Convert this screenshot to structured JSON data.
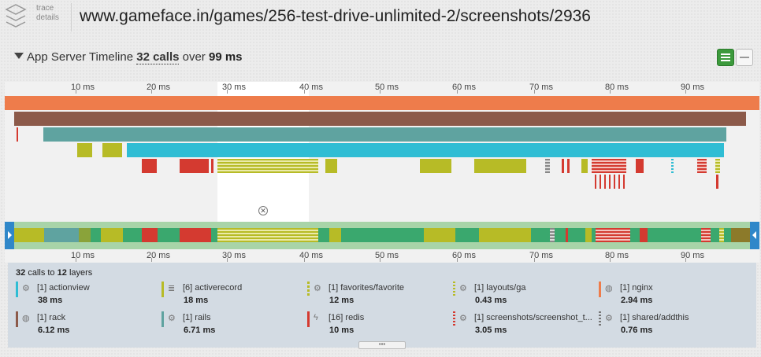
{
  "header": {
    "logo_line1": "trace",
    "logo_line2": "details",
    "url": "www.gameface.in/games/256-test-drive-unlimited-2/screenshots/2936"
  },
  "section": {
    "title": "App Server Timeline",
    "calls": "32 calls",
    "over": "over",
    "duration": "99 ms"
  },
  "ruler": {
    "ticks": [
      "10 ms",
      "20 ms",
      "30 ms",
      "40 ms",
      "50 ms",
      "60 ms",
      "70 ms",
      "80 ms",
      "90 ms"
    ]
  },
  "colors": {
    "nginx": "#ee7c4b",
    "rack": "#8c5a4a",
    "rails": "#5fa3a0",
    "actionview": "#2fbdd4",
    "activerecord": "#b7bb26",
    "redis": "#d43a30",
    "selected": "#ffffff",
    "minimap": "#3aa86e",
    "handle": "#2f87c9",
    "view_active": "#3c9a3c"
  },
  "legend": {
    "title_count": "32",
    "title_mid": "calls to",
    "title_layers": "12",
    "title_tail": "layers",
    "items": [
      {
        "name": "[1] actionview",
        "ms": "38 ms",
        "icon": "gears-icon"
      },
      {
        "name": "[6] activerecord",
        "ms": "18 ms",
        "icon": "database-icon"
      },
      {
        "name": "[1] favorites/favorite",
        "ms": "12 ms",
        "icon": "gears-icon"
      },
      {
        "name": "[1] layouts/ga",
        "ms": "0.43 ms",
        "icon": "gears-icon"
      },
      {
        "name": "[1] nginx",
        "ms": "2.94 ms",
        "icon": "globe-icon"
      },
      {
        "name": "[1] rack",
        "ms": "6.12 ms",
        "icon": "globe-icon"
      },
      {
        "name": "[1] rails",
        "ms": "6.71 ms",
        "icon": "gears-icon"
      },
      {
        "name": "[16] redis",
        "ms": "10 ms",
        "icon": "bolt-icon"
      },
      {
        "name": "[1] screenshots/screenshot_t...",
        "ms": "3.05 ms",
        "icon": "gears-icon"
      },
      {
        "name": "[1] shared/addthis",
        "ms": "0.76 ms",
        "icon": "gears-icon"
      }
    ]
  },
  "grip": "▪▪▪"
}
